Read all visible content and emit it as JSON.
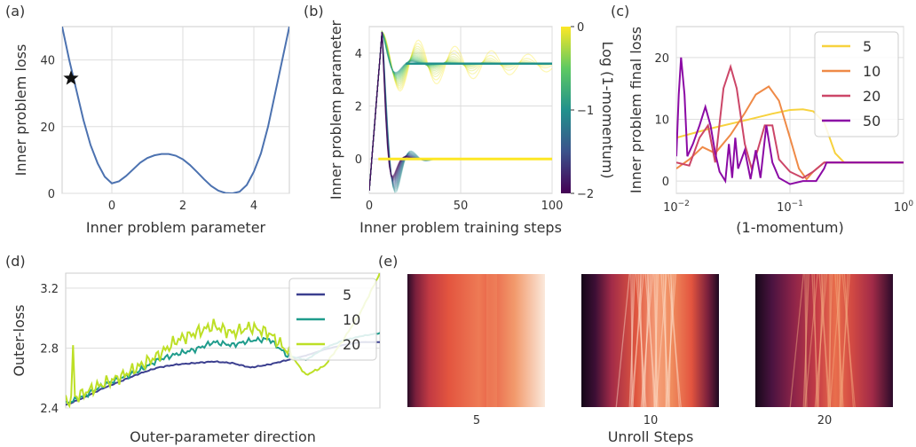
{
  "panels": {
    "a": {
      "tag": "(a)",
      "xlabel": "Inner problem parameter",
      "ylabel": "Inner problem loss",
      "xticks": [
        "0",
        "2",
        "4"
      ],
      "yticks": [
        "0",
        "20",
        "40"
      ]
    },
    "b": {
      "tag": "(b)",
      "xlabel": "Inner problem training steps",
      "ylabel": "Inner problem parameter",
      "xticks": [
        "0",
        "50",
        "100"
      ],
      "yticks": [
        "0",
        "2",
        "4"
      ],
      "colorbar_label": "Log (1-momentum)",
      "colorbar_ticks": [
        "0",
        "−1",
        "−2"
      ]
    },
    "c": {
      "tag": "(c)",
      "xlabel": "(1-momentum)",
      "ylabel": "Inner problem final loss",
      "yticks": [
        "0",
        "10",
        "20"
      ],
      "xticks_base": [
        "10",
        "10",
        "10"
      ],
      "xticks_exp": [
        "−2",
        "−1",
        "0"
      ],
      "legend": [
        "5",
        "10",
        "20",
        "50"
      ]
    },
    "d": {
      "tag": "(d)",
      "xlabel": "Outer-parameter direction",
      "ylabel": "Outer-loss",
      "yticks": [
        "2.4",
        "2.8",
        "3.2"
      ],
      "legend": [
        "5",
        "10",
        "20"
      ]
    },
    "e": {
      "tag": "(e)",
      "xlabel": "Unroll Steps",
      "panel_labels": [
        "5",
        "10",
        "20"
      ]
    }
  },
  "chart_data": [
    {
      "type": "line",
      "panel": "a",
      "xlabel": "Inner problem parameter",
      "ylabel": "Inner problem loss",
      "xlim": [
        -1.4,
        5.0
      ],
      "ylim": [
        0,
        50
      ],
      "x": [
        -1.4,
        -1.2,
        -1.0,
        -0.8,
        -0.6,
        -0.4,
        -0.2,
        0.0,
        0.2,
        0.4,
        0.6,
        0.8,
        1.0,
        1.2,
        1.4,
        1.6,
        1.8,
        2.0,
        2.2,
        2.4,
        2.6,
        2.8,
        3.0,
        3.2,
        3.4,
        3.6,
        3.8,
        4.0,
        4.2,
        4.4,
        4.6,
        4.8,
        5.0
      ],
      "y": [
        50,
        40,
        31,
        22,
        14.5,
        9,
        5,
        3,
        3.6,
        5.2,
        7.2,
        9.2,
        10.6,
        11.4,
        11.8,
        11.8,
        11.3,
        10.2,
        8.5,
        6.4,
        4.2,
        2.2,
        0.8,
        0.1,
        0,
        0.5,
        2.5,
        6.5,
        12,
        20,
        30,
        40,
        50
      ],
      "marker": {
        "x": -1.15,
        "y": 34.5,
        "symbol": "star"
      }
    },
    {
      "type": "line",
      "panel": "b",
      "xlabel": "Inner problem training steps",
      "ylabel": "Inner problem parameter",
      "xlim": [
        0,
        100
      ],
      "ylim": [
        -1.3,
        5.0
      ],
      "colorbar": {
        "label": "Log (1-momentum)",
        "range": [
          -2,
          0
        ]
      },
      "limits": [
        3.6,
        0.0
      ],
      "peak": {
        "x": 7,
        "y": 4.8
      }
    },
    {
      "type": "line",
      "panel": "c",
      "xlabel": "(1-momentum)",
      "ylabel": "Inner problem final loss",
      "xscale": "log",
      "xlim": [
        0.01,
        1.0
      ],
      "ylim": [
        -2,
        25
      ],
      "series": [
        {
          "name": "5",
          "color": "#f7d23e",
          "x": [
            0.01,
            0.02,
            0.04,
            0.07,
            0.1,
            0.13,
            0.16,
            0.2,
            0.25,
            0.3,
            1.0
          ],
          "y": [
            7,
            8.5,
            9.8,
            10.9,
            11.5,
            11.6,
            11.3,
            9.5,
            4.5,
            3,
            3
          ]
        },
        {
          "name": "10",
          "color": "#ef8a47",
          "x": [
            0.01,
            0.013,
            0.017,
            0.022,
            0.03,
            0.04,
            0.05,
            0.065,
            0.08,
            0.1,
            0.12,
            0.14,
            0.16,
            0.2,
            1.0
          ],
          "y": [
            2,
            3.5,
            5.5,
            4.5,
            7.5,
            11,
            14,
            15.3,
            13,
            7,
            2,
            0.3,
            1.5,
            3,
            3
          ]
        },
        {
          "name": "20",
          "color": "#cc4668",
          "x": [
            0.01,
            0.013,
            0.016,
            0.019,
            0.022,
            0.026,
            0.03,
            0.034,
            0.04,
            0.046,
            0.052,
            0.06,
            0.07,
            0.08,
            0.1,
            0.13,
            0.16,
            0.2,
            1.0
          ],
          "y": [
            3,
            2.5,
            7,
            9,
            3,
            15,
            18.5,
            15,
            6,
            2,
            5,
            9,
            9,
            3.5,
            1.5,
            0.5,
            1.5,
            3,
            3
          ]
        },
        {
          "name": "50",
          "color": "#8b0aa5",
          "x": [
            0.01,
            0.0105,
            0.011,
            0.0118,
            0.0125,
            0.014,
            0.016,
            0.018,
            0.02,
            0.022,
            0.024,
            0.027,
            0.029,
            0.031,
            0.033,
            0.035,
            0.04,
            0.045,
            0.05,
            0.055,
            0.062,
            0.07,
            0.08,
            0.1,
            0.13,
            0.17,
            0.2,
            0.21,
            1.0
          ],
          "y": [
            4,
            14,
            20,
            14,
            4,
            6,
            9,
            12,
            9,
            4.5,
            1.5,
            0,
            6,
            0.5,
            7,
            2,
            5,
            0.3,
            5,
            0.5,
            9,
            3,
            0.5,
            -0.5,
            0,
            0,
            2,
            3,
            3
          ]
        }
      ]
    },
    {
      "type": "line",
      "panel": "d",
      "xlabel": "Outer-parameter direction",
      "ylabel": "Outer-loss",
      "ylim": [
        2.4,
        3.3
      ],
      "series": [
        {
          "name": "5",
          "color": "#3b3f8f",
          "y": [
            2.42,
            2.47,
            2.53,
            2.58,
            2.63,
            2.67,
            2.69,
            2.7,
            2.71,
            2.7,
            2.67,
            2.69,
            2.72,
            2.75,
            2.79,
            2.82,
            2.84,
            2.84
          ]
        },
        {
          "name": "10",
          "color": "#1f9c8c",
          "y": [
            2.43,
            2.48,
            2.55,
            2.6,
            2.65,
            2.72,
            2.76,
            2.79,
            2.84,
            2.82,
            2.85,
            2.86,
            2.75,
            2.72,
            2.8,
            2.85,
            2.88,
            2.9
          ]
        },
        {
          "name": "20",
          "color": "#bddf26",
          "y": [
            2.44,
            2.5,
            2.56,
            2.61,
            2.68,
            2.75,
            2.85,
            2.9,
            2.95,
            2.9,
            2.94,
            2.9,
            2.78,
            2.62,
            2.68,
            2.85,
            3.05,
            3.3
          ]
        }
      ]
    },
    {
      "type": "heatmap",
      "panel": "e",
      "xlabel": "Unroll Steps",
      "categories": [
        "5",
        "10",
        "20"
      ]
    }
  ]
}
